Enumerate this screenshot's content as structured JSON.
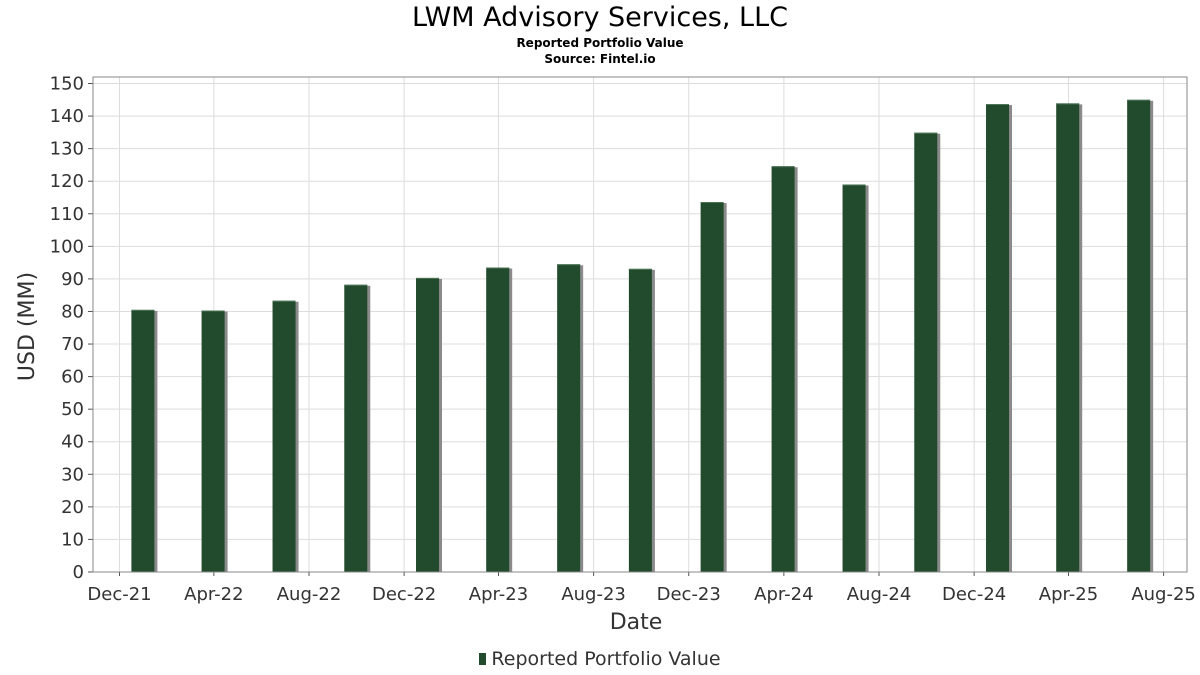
{
  "chart_data": {
    "type": "bar",
    "title": "LWM Advisory Services, LLC",
    "subtitle": "Reported Portfolio Value",
    "source": "Source: Fintel.io",
    "xlabel": "Date",
    "ylabel": "USD (MM)",
    "ylim": [
      0,
      152
    ],
    "yticks": [
      0,
      10,
      20,
      30,
      40,
      50,
      60,
      70,
      80,
      90,
      100,
      110,
      120,
      130,
      140,
      150
    ],
    "xlim": [
      "2021-10-28",
      "2025-08-31"
    ],
    "xticks": [
      {
        "date": "2021-12-01",
        "label": "Dec-21"
      },
      {
        "date": "2022-04-01",
        "label": "Apr-22"
      },
      {
        "date": "2022-08-01",
        "label": "Aug-22"
      },
      {
        "date": "2022-12-01",
        "label": "Dec-22"
      },
      {
        "date": "2023-04-01",
        "label": "Apr-23"
      },
      {
        "date": "2023-08-01",
        "label": "Aug-23"
      },
      {
        "date": "2023-12-01",
        "label": "Dec-23"
      },
      {
        "date": "2024-04-01",
        "label": "Apr-24"
      },
      {
        "date": "2024-08-01",
        "label": "Aug-24"
      },
      {
        "date": "2024-12-01",
        "label": "Dec-24"
      },
      {
        "date": "2025-04-01",
        "label": "Apr-25"
      },
      {
        "date": "2025-08-01",
        "label": "Aug-25"
      }
    ],
    "grid": true,
    "legend_position": "bottom",
    "series": [
      {
        "name": "Reported Portfolio Value",
        "color": "#224a2c",
        "x": [
          "2021-12-31",
          "2022-03-31",
          "2022-06-30",
          "2022-09-30",
          "2022-12-31",
          "2023-03-31",
          "2023-06-30",
          "2023-09-30",
          "2023-12-31",
          "2024-03-31",
          "2024-06-30",
          "2024-09-30",
          "2024-12-31",
          "2025-03-31",
          "2025-06-30"
        ],
        "values": [
          80.5,
          80.3,
          83.3,
          88.2,
          90.3,
          93.5,
          94.5,
          93.1,
          113.6,
          124.6,
          119.0,
          134.9,
          143.7,
          143.9,
          145.0
        ]
      }
    ]
  }
}
